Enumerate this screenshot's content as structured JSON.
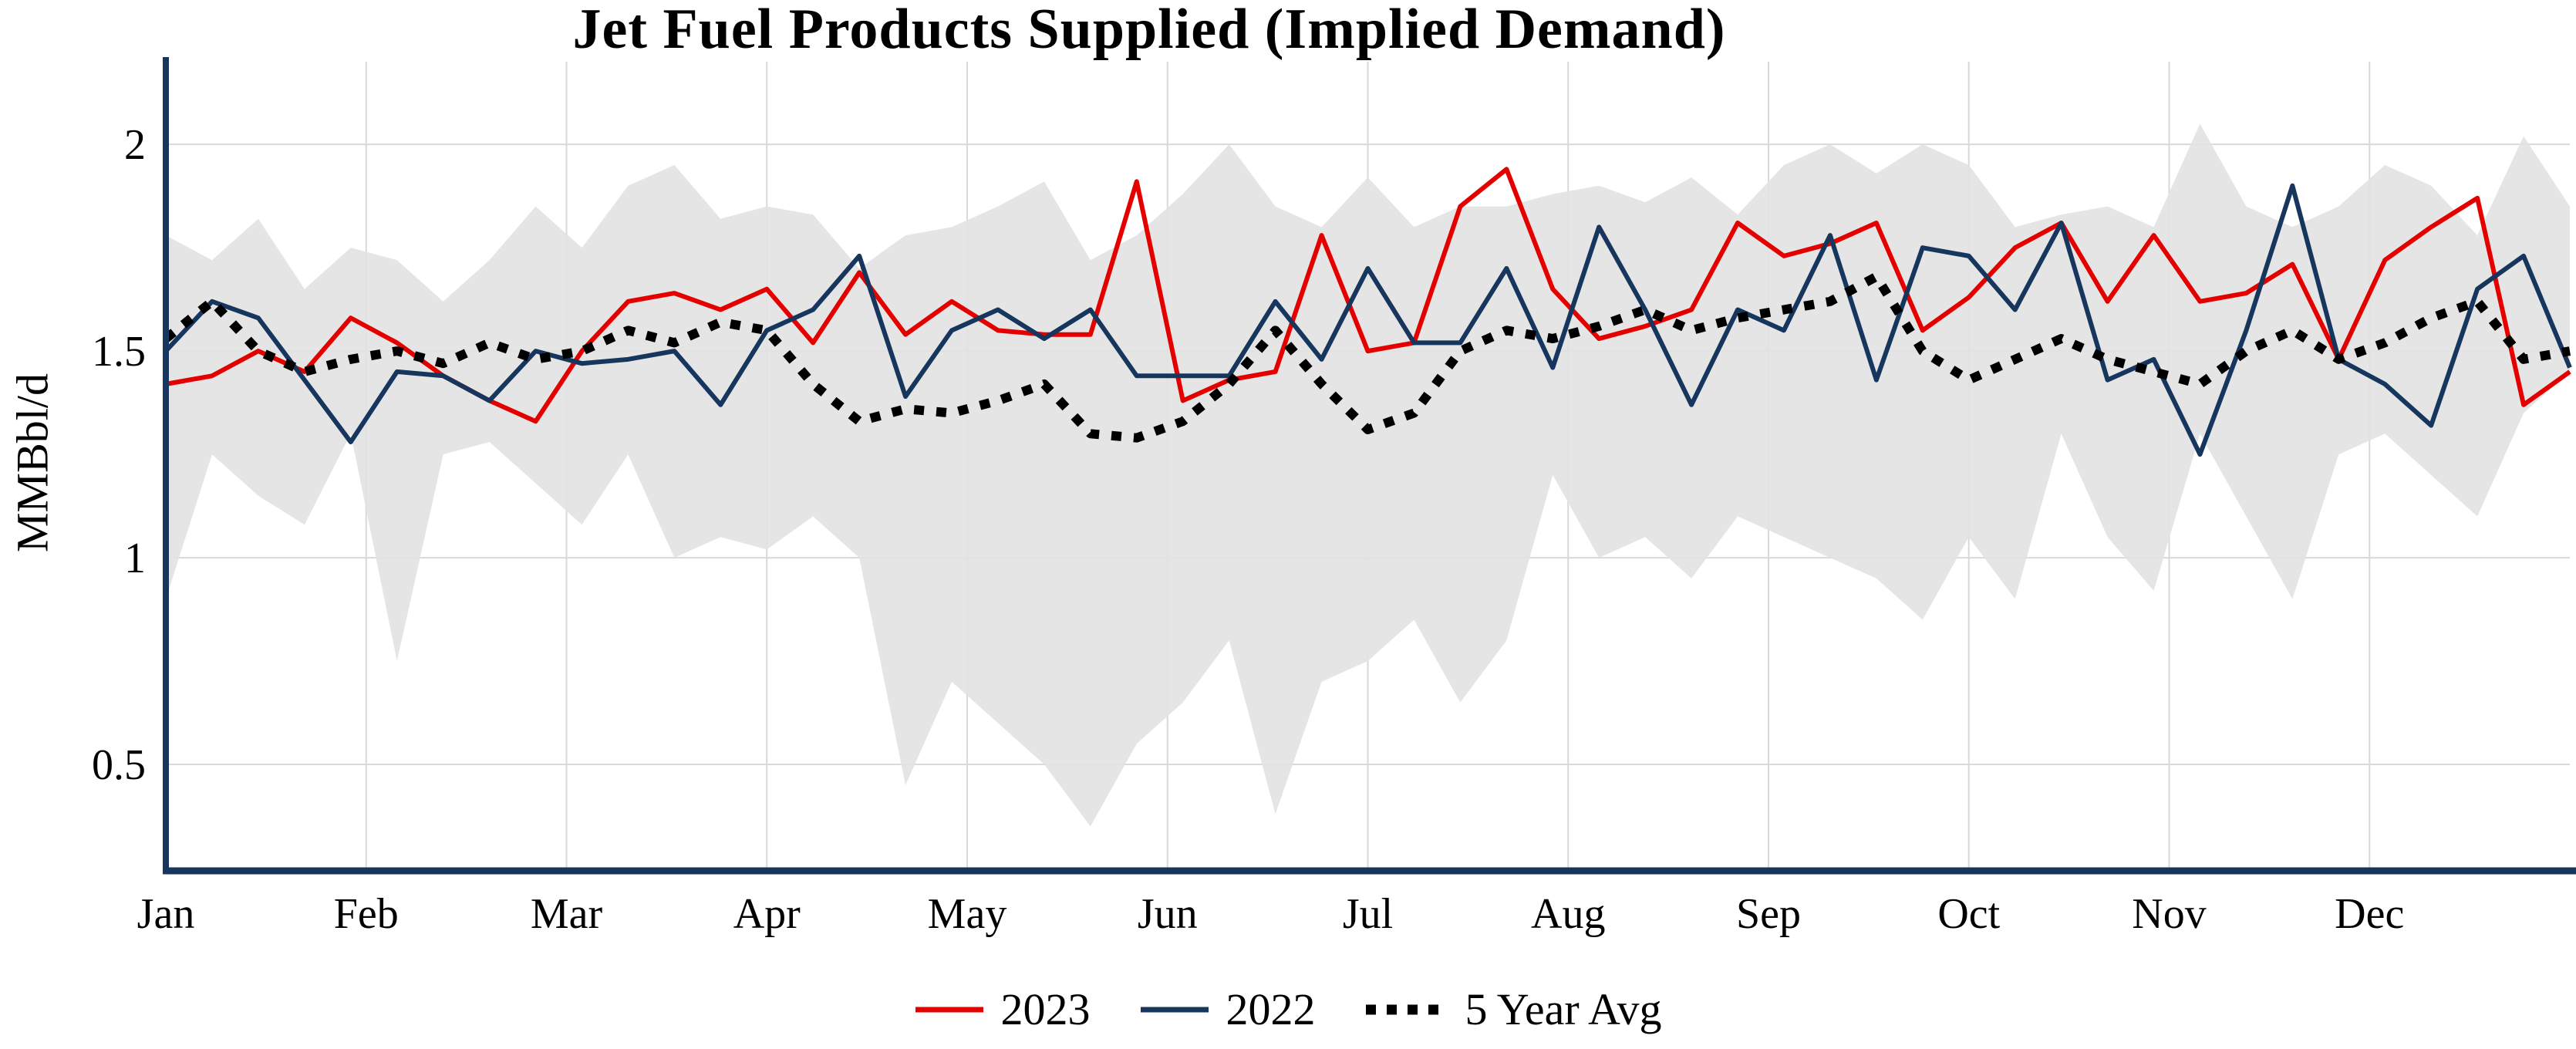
{
  "chart_data": {
    "type": "line",
    "title": "Jet Fuel Products Supplied (Implied Demand)",
    "ylabel": "MMBbl/d",
    "xlabel": "",
    "x_unit": "week",
    "n_points": 53,
    "x_tick_labels": [
      "Jan",
      "Feb",
      "Mar",
      "Apr",
      "May",
      "Jun",
      "Jul",
      "Aug",
      "Sep",
      "Oct",
      "Nov",
      "Dec"
    ],
    "y_ticks": [
      0.5,
      1,
      1.5,
      2
    ],
    "ylim": [
      0.25,
      2.2
    ],
    "grid": true,
    "legend_position": "bottom",
    "series": [
      {
        "name": "2023",
        "color": "#e50000",
        "style": "solid",
        "values": [
          1.42,
          1.44,
          1.5,
          1.45,
          1.58,
          1.52,
          1.44,
          1.38,
          1.33,
          1.5,
          1.62,
          1.64,
          1.6,
          1.65,
          1.52,
          1.69,
          1.54,
          1.62,
          1.55,
          1.54,
          1.54,
          1.91,
          1.38,
          1.43,
          1.45,
          1.78,
          1.5,
          1.52,
          1.85,
          1.94,
          1.65,
          1.53,
          1.56,
          1.6,
          1.81,
          1.73,
          1.76,
          1.81,
          1.55,
          1.63,
          1.75,
          1.81,
          1.62,
          1.78,
          1.62,
          1.64,
          1.71,
          1.48,
          1.72,
          1.8,
          1.87,
          1.37,
          1.45
        ]
      },
      {
        "name": "2022",
        "color": "#17365d",
        "style": "solid",
        "values": [
          1.5,
          1.62,
          1.58,
          1.43,
          1.28,
          1.45,
          1.44,
          1.38,
          1.5,
          1.47,
          1.48,
          1.5,
          1.37,
          1.55,
          1.6,
          1.73,
          1.39,
          1.55,
          1.6,
          1.53,
          1.6,
          1.44,
          1.44,
          1.44,
          1.62,
          1.48,
          1.7,
          1.52,
          1.52,
          1.7,
          1.46,
          1.8,
          1.6,
          1.37,
          1.6,
          1.55,
          1.78,
          1.43,
          1.75,
          1.73,
          1.6,
          1.81,
          1.43,
          1.48,
          1.25,
          1.55,
          1.9,
          1.48,
          1.42,
          1.32,
          1.65,
          1.73,
          1.46
        ]
      },
      {
        "name": "5 Year Avg",
        "color": "#000000",
        "style": "dotted",
        "values": [
          1.53,
          1.62,
          1.5,
          1.45,
          1.48,
          1.5,
          1.47,
          1.52,
          1.48,
          1.5,
          1.55,
          1.52,
          1.57,
          1.55,
          1.42,
          1.33,
          1.36,
          1.35,
          1.38,
          1.42,
          1.3,
          1.29,
          1.33,
          1.42,
          1.55,
          1.42,
          1.31,
          1.35,
          1.5,
          1.55,
          1.53,
          1.56,
          1.6,
          1.55,
          1.58,
          1.6,
          1.62,
          1.68,
          1.5,
          1.43,
          1.48,
          1.53,
          1.48,
          1.45,
          1.42,
          1.5,
          1.55,
          1.48,
          1.52,
          1.58,
          1.62,
          1.48,
          1.5
        ]
      }
    ],
    "band": {
      "name": "five-year-range",
      "color": "#e2e2e2",
      "max": [
        1.78,
        1.72,
        1.82,
        1.65,
        1.75,
        1.72,
        1.62,
        1.72,
        1.85,
        1.75,
        1.9,
        1.95,
        1.82,
        1.85,
        1.83,
        1.7,
        1.78,
        1.8,
        1.85,
        1.91,
        1.72,
        1.78,
        1.88,
        2.0,
        1.85,
        1.8,
        1.92,
        1.8,
        1.85,
        1.85,
        1.88,
        1.9,
        1.86,
        1.92,
        1.83,
        1.95,
        2.0,
        1.93,
        2.0,
        1.95,
        1.8,
        1.83,
        1.85,
        1.8,
        2.05,
        1.85,
        1.8,
        1.85,
        1.95,
        1.9,
        1.78,
        2.02,
        1.85
      ],
      "min": [
        0.9,
        1.25,
        1.15,
        1.08,
        1.3,
        0.75,
        1.25,
        1.28,
        1.18,
        1.08,
        1.25,
        1.0,
        1.05,
        1.02,
        1.1,
        1.0,
        0.45,
        0.7,
        0.6,
        0.5,
        0.35,
        0.55,
        0.65,
        0.8,
        0.38,
        0.7,
        0.75,
        0.85,
        0.65,
        0.8,
        1.2,
        1.0,
        1.05,
        0.95,
        1.1,
        1.05,
        1.0,
        0.95,
        0.85,
        1.05,
        0.9,
        1.3,
        1.05,
        0.92,
        1.3,
        1.1,
        0.9,
        1.25,
        1.3,
        1.2,
        1.1,
        1.35,
        1.45
      ]
    }
  },
  "colors": {
    "axis": "#17365d",
    "grid": "#d9d9d9",
    "band": "#e2e2e2",
    "text": "#000000"
  }
}
